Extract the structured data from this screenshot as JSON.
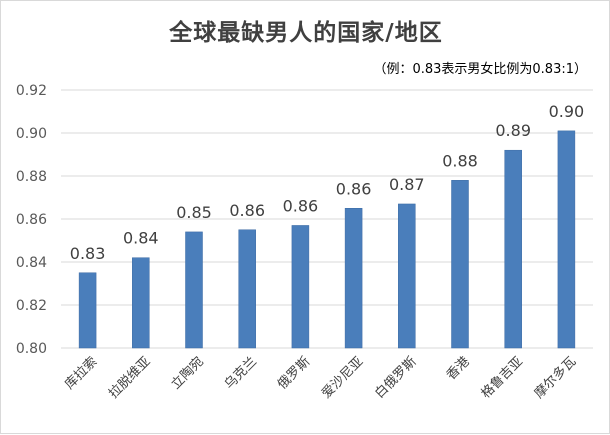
{
  "chart_data": {
    "type": "bar",
    "title": "全球最缺男人的国家/地区",
    "subtitle": "（例：0.83表示男女比例为0.83:1）",
    "xlabel": "",
    "ylabel": "",
    "categories": [
      "库拉索",
      "拉脱维亚",
      "立陶宛",
      "乌克兰",
      "俄罗斯",
      "爱沙尼亚",
      "白俄罗斯",
      "香港",
      "格鲁吉亚",
      "摩尔多瓦"
    ],
    "values": [
      0.835,
      0.842,
      0.854,
      0.855,
      0.857,
      0.865,
      0.867,
      0.878,
      0.892,
      0.901
    ],
    "data_labels": [
      "0.83",
      "0.84",
      "0.85",
      "0.86",
      "0.86",
      "0.86",
      "0.87",
      "0.88",
      "0.89",
      "0.90"
    ],
    "ylim": [
      0.8,
      0.92
    ],
    "yticks": [
      "0.80",
      "0.82",
      "0.84",
      "0.86",
      "0.88",
      "0.90",
      "0.92"
    ],
    "grid": true,
    "legend": "none",
    "bar_color": "#4a7ebb"
  }
}
